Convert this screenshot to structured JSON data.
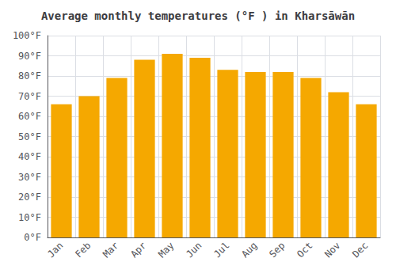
{
  "chart_data": {
    "type": "bar",
    "title": "Average monthly temperatures (°F ) in Kharsāwān",
    "categories": [
      "Jan",
      "Feb",
      "Mar",
      "Apr",
      "May",
      "Jun",
      "Jul",
      "Aug",
      "Sep",
      "Oct",
      "Nov",
      "Dec"
    ],
    "values": [
      66,
      70,
      79,
      88,
      91,
      89,
      83,
      82,
      82,
      79,
      72,
      66
    ],
    "color": "#F5A800",
    "ylim": [
      0,
      100
    ],
    "yticks": [
      {
        "value": 0,
        "label": "0°F"
      },
      {
        "value": 10,
        "label": "10°F"
      },
      {
        "value": 20,
        "label": "20°F"
      },
      {
        "value": 30,
        "label": "30°F"
      },
      {
        "value": 40,
        "label": "40°F"
      },
      {
        "value": 50,
        "label": "50°F"
      },
      {
        "value": 60,
        "label": "60°F"
      },
      {
        "value": 70,
        "label": "70°F"
      },
      {
        "value": 80,
        "label": "80°F"
      },
      {
        "value": 90,
        "label": "90°F"
      },
      {
        "value": 100,
        "label": "100°F"
      }
    ],
    "grid": true
  }
}
